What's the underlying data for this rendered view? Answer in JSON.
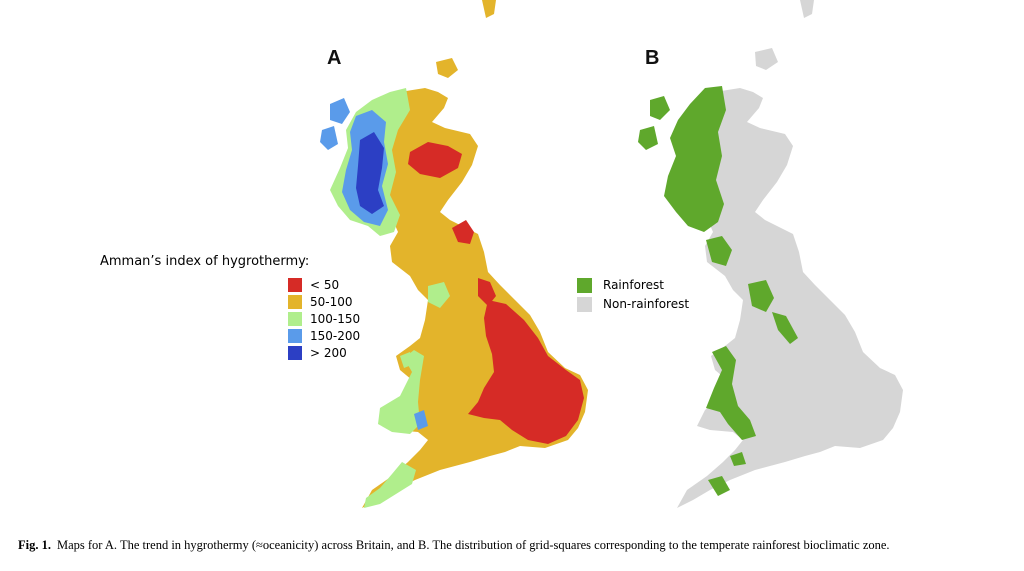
{
  "panel_a": {
    "label": "A",
    "legend": {
      "title": "Amman’s index of hygrothermy:",
      "items": [
        {
          "label": "< 50",
          "color": "#d62b26"
        },
        {
          "label": "50-100",
          "color": "#e3b42b"
        },
        {
          "label": "100-150",
          "color": "#b0ee8c"
        },
        {
          "label": "150-200",
          "color": "#5a9bea"
        },
        {
          "label": "> 200",
          "color": "#2c3fc4"
        }
      ]
    }
  },
  "panel_b": {
    "label": "B",
    "legend": {
      "items": [
        {
          "label": "Rainforest",
          "color": "#5fa82c"
        },
        {
          "label": "Non-rainforest",
          "color": "#d6d6d6"
        }
      ]
    }
  },
  "caption": {
    "figure_number": "Fig. 1.",
    "text": "Maps for A. The trend in hygrothermy (≈oceanicity) across Britain, and B. The distribution of grid-squares corresponding to the temperate rainforest bioclimatic zone."
  }
}
